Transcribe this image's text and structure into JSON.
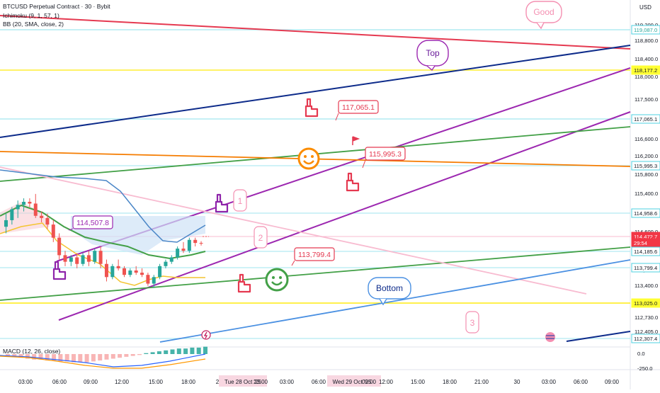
{
  "header": {
    "symbol_line": "BTCUSD Perpetual Contract · 30 · Bybit",
    "ichimoku_line": "Ichimoku (9, 1, 57, 1)",
    "bb_line": "BB (20, SMA, close, 2)",
    "macd_line": "MACD (12, 26, close)"
  },
  "price_axis": {
    "currency": "USD",
    "ticks": [
      "119,200.0",
      "118,800.0",
      "118,400.0",
      "118,000.0",
      "117,500.0",
      "117,000.0",
      "116,600.0",
      "116,200.0",
      "115,800.0",
      "115,400.0",
      "115,000.0",
      "114,600.0",
      "113,800.0",
      "113,400.0",
      "113,000.0",
      "112,730.0",
      "112,405.0"
    ],
    "badges": [
      {
        "text": "119,087.0",
        "bg": "#ffffff",
        "fg": "#26a69a",
        "border": "#4dd0e1"
      },
      {
        "text": "118,177.2",
        "bg": "#ffff33",
        "fg": "#131722",
        "border": "#ffff33"
      },
      {
        "text": "117,065.1",
        "bg": "#ffffff",
        "fg": "#131722",
        "border": "#4dd0e1"
      },
      {
        "text": "115,995.3",
        "bg": "#ffffff",
        "fg": "#131722",
        "border": "#4dd0e1"
      },
      {
        "text": "114,958.6",
        "bg": "#ffffff",
        "fg": "#131722",
        "border": "#4dd0e1"
      },
      {
        "text": "114,472.7",
        "bg": "#f23645",
        "fg": "#ffffff",
        "border": "#f23645"
      },
      {
        "text": "29:54",
        "bg": "#f23645",
        "fg": "#ffffff",
        "border": "#f23645"
      },
      {
        "text": "114,185.6",
        "bg": "#ffffff",
        "fg": "#131722",
        "border": "#4dd0e1"
      },
      {
        "text": "113,799.4",
        "bg": "#ffffff",
        "fg": "#131722",
        "border": "#4dd0e1"
      },
      {
        "text": "113,025.0",
        "bg": "#ffff33",
        "fg": "#131722",
        "border": "#ffff33"
      },
      {
        "text": "112,307.4",
        "bg": "#ffffff",
        "fg": "#131722",
        "border": "#4dd0e1"
      }
    ]
  },
  "macd_axis": {
    "ticks": [
      "0.0",
      "-250.0"
    ]
  },
  "time_axis": {
    "ticks": [
      "03:00",
      "06:00",
      "09:00",
      "12:00",
      "15:00",
      "18:00",
      "2",
      "Tue 28 Oct '25",
      "23:00",
      "03:00",
      "06:00",
      "Wed 29 Oct '25",
      "09:00",
      "12:00",
      "15:00",
      "18:00",
      "21:00",
      "30",
      "03:00",
      "06:00",
      "09:00"
    ],
    "highlight_color": "#f8d7e1"
  },
  "annotations": {
    "good": "Good",
    "top": "Top",
    "bottom": "Bottom",
    "n1": "1",
    "n2": "2",
    "n3": "3",
    "price_labels": [
      "114,507.8",
      "117,065.1",
      "115,995.3",
      "113,799.4"
    ]
  },
  "colors": {
    "red_line": "#e53950",
    "navy_line": "#0d2b8a",
    "purple": "#9c27b0",
    "green": "#43a047",
    "orange": "#f57c00",
    "pink": "#f8bbd0",
    "blue": "#4a90e2",
    "yellow": "#ffee33",
    "cyan": "#b2ebf2",
    "up": "#26a69a",
    "down": "#ef5350"
  },
  "icons": [
    "pointing-hand-icon",
    "smiley-face-icon",
    "flag-icon",
    "lightning-icon",
    "globe-icon"
  ],
  "chart_data": {
    "type": "candlestick",
    "title": "BTCUSD Perpetual Contract · 30 · Bybit",
    "xlabel": "",
    "ylabel": "USD",
    "ylim": [
      112250,
      119350
    ],
    "candles_ohlc": [
      [
        114850,
        115150,
        114700,
        115000
      ],
      [
        115000,
        115300,
        114900,
        115250
      ],
      [
        115250,
        115450,
        115050,
        115350
      ],
      [
        115350,
        115500,
        115200,
        115420
      ],
      [
        115420,
        115500,
        115300,
        115380
      ],
      [
        115380,
        115600,
        115050,
        115100
      ],
      [
        115100,
        115200,
        114950,
        115050
      ],
      [
        115050,
        115150,
        114800,
        114900
      ],
      [
        114900,
        115000,
        114500,
        114600
      ],
      [
        114600,
        114700,
        114100,
        114200
      ],
      [
        114200,
        114300,
        113950,
        114050
      ],
      [
        114050,
        114200,
        113950,
        114150
      ],
      [
        114150,
        114250,
        113900,
        114000
      ],
      [
        114000,
        114250,
        113950,
        114200
      ],
      [
        114200,
        114300,
        113950,
        114050
      ],
      [
        114050,
        114350,
        114000,
        114300
      ],
      [
        114300,
        114400,
        113900,
        114000
      ],
      [
        114000,
        114100,
        113600,
        113700
      ],
      [
        113700,
        114000,
        113650,
        113950
      ],
      [
        113950,
        114100,
        113850,
        113900
      ],
      [
        113900,
        113950,
        113700,
        113750
      ],
      [
        113750,
        113900,
        113700,
        113850
      ],
      [
        113850,
        113950,
        113750,
        113800
      ],
      [
        113800,
        113900,
        113700,
        113750
      ],
      [
        113750,
        113800,
        113500,
        113550
      ],
      [
        113550,
        113750,
        113450,
        113700
      ],
      [
        113700,
        114000,
        113650,
        113950
      ],
      [
        113950,
        114100,
        113900,
        114050
      ],
      [
        114050,
        114200,
        114000,
        114150
      ],
      [
        114150,
        114400,
        114100,
        114350
      ],
      [
        114350,
        114500,
        114250,
        114300
      ],
      [
        114300,
        114600,
        114250,
        114550
      ],
      [
        114550,
        114600,
        114400,
        114480
      ],
      [
        114480,
        114520,
        114420,
        114472.7
      ]
    ],
    "last_price": 114472.7
  }
}
